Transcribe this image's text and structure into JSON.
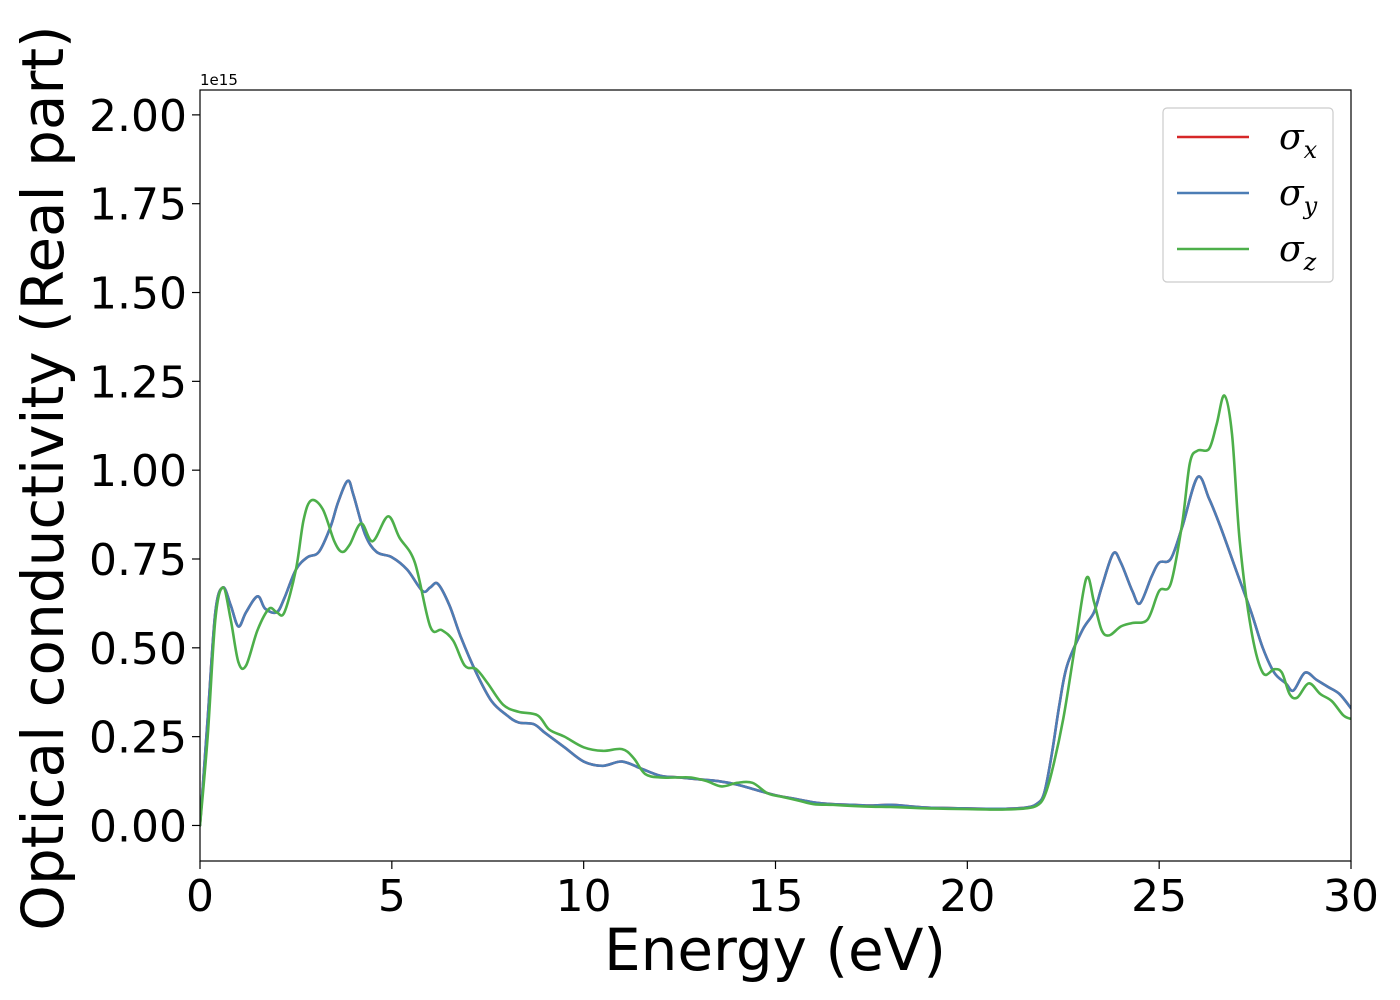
{
  "chart_data": {
    "type": "line",
    "xlabel": "Energy (eV)",
    "ylabel": "Optical conductivity (Real part)",
    "y_offset_text": "1e15",
    "xlim": [
      0,
      30
    ],
    "ylim": [
      -0.1,
      2.07
    ],
    "xticks": [
      0,
      5,
      10,
      15,
      20,
      25,
      30
    ],
    "xtick_labels": [
      "0",
      "5",
      "10",
      "15",
      "20",
      "25",
      "30"
    ],
    "yticks": [
      0.0,
      0.25,
      0.5,
      0.75,
      1.0,
      1.25,
      1.5,
      1.75,
      2.0
    ],
    "ytick_labels": [
      "0.00",
      "0.25",
      "0.50",
      "0.75",
      "1.00",
      "1.25",
      "1.50",
      "1.75",
      "2.00"
    ],
    "legend_position": "upper right",
    "grid": false,
    "series": [
      {
        "name": "σx",
        "name_base": "σ",
        "name_sub": "x",
        "color": "#d62728",
        "points": [
          [
            0,
            0.0
          ],
          [
            0.2,
            0.3
          ],
          [
            0.4,
            0.6
          ],
          [
            0.6,
            0.67
          ],
          [
            0.8,
            0.62
          ],
          [
            1.0,
            0.56
          ],
          [
            1.2,
            0.6
          ],
          [
            1.5,
            0.645
          ],
          [
            1.7,
            0.61
          ],
          [
            2.0,
            0.6
          ],
          [
            2.2,
            0.64
          ],
          [
            2.5,
            0.72
          ],
          [
            2.8,
            0.755
          ],
          [
            3.1,
            0.77
          ],
          [
            3.4,
            0.84
          ],
          [
            3.6,
            0.91
          ],
          [
            3.85,
            0.97
          ],
          [
            4.0,
            0.93
          ],
          [
            4.3,
            0.82
          ],
          [
            4.6,
            0.77
          ],
          [
            5.0,
            0.755
          ],
          [
            5.4,
            0.72
          ],
          [
            5.8,
            0.66
          ],
          [
            6.0,
            0.67
          ],
          [
            6.2,
            0.68
          ],
          [
            6.5,
            0.62
          ],
          [
            6.8,
            0.53
          ],
          [
            7.2,
            0.43
          ],
          [
            7.6,
            0.35
          ],
          [
            8.0,
            0.31
          ],
          [
            8.3,
            0.29
          ],
          [
            8.7,
            0.285
          ],
          [
            9.0,
            0.26
          ],
          [
            9.5,
            0.22
          ],
          [
            10.0,
            0.18
          ],
          [
            10.5,
            0.168
          ],
          [
            11.0,
            0.18
          ],
          [
            11.5,
            0.16
          ],
          [
            12.0,
            0.14
          ],
          [
            12.5,
            0.135
          ],
          [
            13.0,
            0.13
          ],
          [
            13.5,
            0.125
          ],
          [
            14.0,
            0.115
          ],
          [
            14.5,
            0.1
          ],
          [
            15.0,
            0.085
          ],
          [
            15.5,
            0.075
          ],
          [
            16.0,
            0.065
          ],
          [
            16.5,
            0.06
          ],
          [
            17.0,
            0.058
          ],
          [
            17.5,
            0.056
          ],
          [
            18.0,
            0.058
          ],
          [
            18.5,
            0.054
          ],
          [
            19.0,
            0.05
          ],
          [
            19.5,
            0.049
          ],
          [
            20.0,
            0.048
          ],
          [
            20.5,
            0.047
          ],
          [
            21.0,
            0.047
          ],
          [
            21.5,
            0.05
          ],
          [
            21.8,
            0.06
          ],
          [
            22.0,
            0.09
          ],
          [
            22.2,
            0.2
          ],
          [
            22.4,
            0.34
          ],
          [
            22.6,
            0.45
          ],
          [
            23.0,
            0.55
          ],
          [
            23.3,
            0.6
          ],
          [
            23.5,
            0.67
          ],
          [
            23.8,
            0.765
          ],
          [
            24.0,
            0.74
          ],
          [
            24.3,
            0.66
          ],
          [
            24.5,
            0.625
          ],
          [
            24.8,
            0.7
          ],
          [
            25.0,
            0.74
          ],
          [
            25.3,
            0.75
          ],
          [
            25.6,
            0.84
          ],
          [
            26.0,
            0.98
          ],
          [
            26.3,
            0.92
          ],
          [
            26.6,
            0.84
          ],
          [
            27.0,
            0.72
          ],
          [
            27.4,
            0.6
          ],
          [
            27.7,
            0.5
          ],
          [
            28.0,
            0.43
          ],
          [
            28.3,
            0.4
          ],
          [
            28.5,
            0.38
          ],
          [
            28.8,
            0.43
          ],
          [
            29.1,
            0.41
          ],
          [
            29.4,
            0.39
          ],
          [
            29.7,
            0.37
          ],
          [
            30.0,
            0.33
          ]
        ]
      },
      {
        "name": "σy",
        "name_base": "σ",
        "name_sub": "y",
        "color": "#4c7db5",
        "points": [
          [
            0,
            0.0
          ],
          [
            0.2,
            0.3
          ],
          [
            0.4,
            0.6
          ],
          [
            0.6,
            0.67
          ],
          [
            0.8,
            0.62
          ],
          [
            1.0,
            0.56
          ],
          [
            1.2,
            0.6
          ],
          [
            1.5,
            0.645
          ],
          [
            1.7,
            0.61
          ],
          [
            2.0,
            0.6
          ],
          [
            2.2,
            0.64
          ],
          [
            2.5,
            0.72
          ],
          [
            2.8,
            0.755
          ],
          [
            3.1,
            0.77
          ],
          [
            3.4,
            0.84
          ],
          [
            3.6,
            0.91
          ],
          [
            3.85,
            0.97
          ],
          [
            4.0,
            0.93
          ],
          [
            4.3,
            0.82
          ],
          [
            4.6,
            0.77
          ],
          [
            5.0,
            0.755
          ],
          [
            5.4,
            0.72
          ],
          [
            5.8,
            0.66
          ],
          [
            6.0,
            0.67
          ],
          [
            6.2,
            0.68
          ],
          [
            6.5,
            0.62
          ],
          [
            6.8,
            0.53
          ],
          [
            7.2,
            0.43
          ],
          [
            7.6,
            0.35
          ],
          [
            8.0,
            0.31
          ],
          [
            8.3,
            0.29
          ],
          [
            8.7,
            0.285
          ],
          [
            9.0,
            0.26
          ],
          [
            9.5,
            0.22
          ],
          [
            10.0,
            0.18
          ],
          [
            10.5,
            0.168
          ],
          [
            11.0,
            0.18
          ],
          [
            11.5,
            0.16
          ],
          [
            12.0,
            0.14
          ],
          [
            12.5,
            0.135
          ],
          [
            13.0,
            0.13
          ],
          [
            13.5,
            0.125
          ],
          [
            14.0,
            0.115
          ],
          [
            14.5,
            0.1
          ],
          [
            15.0,
            0.085
          ],
          [
            15.5,
            0.075
          ],
          [
            16.0,
            0.065
          ],
          [
            16.5,
            0.06
          ],
          [
            17.0,
            0.058
          ],
          [
            17.5,
            0.056
          ],
          [
            18.0,
            0.058
          ],
          [
            18.5,
            0.054
          ],
          [
            19.0,
            0.05
          ],
          [
            19.5,
            0.049
          ],
          [
            20.0,
            0.048
          ],
          [
            20.5,
            0.047
          ],
          [
            21.0,
            0.047
          ],
          [
            21.5,
            0.05
          ],
          [
            21.8,
            0.06
          ],
          [
            22.0,
            0.09
          ],
          [
            22.2,
            0.2
          ],
          [
            22.4,
            0.34
          ],
          [
            22.6,
            0.45
          ],
          [
            23.0,
            0.55
          ],
          [
            23.3,
            0.6
          ],
          [
            23.5,
            0.67
          ],
          [
            23.8,
            0.765
          ],
          [
            24.0,
            0.74
          ],
          [
            24.3,
            0.66
          ],
          [
            24.5,
            0.625
          ],
          [
            24.8,
            0.7
          ],
          [
            25.0,
            0.74
          ],
          [
            25.3,
            0.75
          ],
          [
            25.6,
            0.84
          ],
          [
            26.0,
            0.98
          ],
          [
            26.3,
            0.92
          ],
          [
            26.6,
            0.84
          ],
          [
            27.0,
            0.72
          ],
          [
            27.4,
            0.6
          ],
          [
            27.7,
            0.5
          ],
          [
            28.0,
            0.43
          ],
          [
            28.3,
            0.4
          ],
          [
            28.5,
            0.38
          ],
          [
            28.8,
            0.43
          ],
          [
            29.1,
            0.41
          ],
          [
            29.4,
            0.39
          ],
          [
            29.7,
            0.37
          ],
          [
            30.0,
            0.33
          ]
        ]
      },
      {
        "name": "σz",
        "name_base": "σ",
        "name_sub": "z",
        "color": "#4daf4a",
        "points": [
          [
            0,
            0.0
          ],
          [
            0.2,
            0.25
          ],
          [
            0.4,
            0.58
          ],
          [
            0.6,
            0.67
          ],
          [
            0.8,
            0.58
          ],
          [
            1.0,
            0.46
          ],
          [
            1.2,
            0.45
          ],
          [
            1.5,
            0.55
          ],
          [
            1.8,
            0.61
          ],
          [
            2.0,
            0.6
          ],
          [
            2.2,
            0.6
          ],
          [
            2.5,
            0.72
          ],
          [
            2.7,
            0.86
          ],
          [
            2.9,
            0.915
          ],
          [
            3.2,
            0.89
          ],
          [
            3.5,
            0.8
          ],
          [
            3.7,
            0.77
          ],
          [
            3.9,
            0.79
          ],
          [
            4.2,
            0.85
          ],
          [
            4.5,
            0.8
          ],
          [
            4.9,
            0.87
          ],
          [
            5.2,
            0.81
          ],
          [
            5.6,
            0.74
          ],
          [
            6.0,
            0.56
          ],
          [
            6.3,
            0.55
          ],
          [
            6.6,
            0.52
          ],
          [
            6.9,
            0.45
          ],
          [
            7.2,
            0.44
          ],
          [
            7.5,
            0.4
          ],
          [
            7.9,
            0.34
          ],
          [
            8.3,
            0.32
          ],
          [
            8.8,
            0.31
          ],
          [
            9.1,
            0.27
          ],
          [
            9.5,
            0.25
          ],
          [
            10.0,
            0.22
          ],
          [
            10.5,
            0.21
          ],
          [
            11.0,
            0.215
          ],
          [
            11.3,
            0.19
          ],
          [
            11.6,
            0.145
          ],
          [
            12.0,
            0.135
          ],
          [
            12.4,
            0.135
          ],
          [
            12.8,
            0.135
          ],
          [
            13.2,
            0.125
          ],
          [
            13.6,
            0.11
          ],
          [
            14.0,
            0.12
          ],
          [
            14.4,
            0.12
          ],
          [
            14.8,
            0.09
          ],
          [
            15.2,
            0.08
          ],
          [
            15.6,
            0.07
          ],
          [
            16.0,
            0.06
          ],
          [
            16.5,
            0.058
          ],
          [
            17.0,
            0.055
          ],
          [
            17.5,
            0.053
          ],
          [
            18.0,
            0.052
          ],
          [
            18.5,
            0.05
          ],
          [
            19.0,
            0.048
          ],
          [
            19.5,
            0.047
          ],
          [
            20.0,
            0.046
          ],
          [
            20.5,
            0.045
          ],
          [
            21.0,
            0.045
          ],
          [
            21.5,
            0.048
          ],
          [
            21.8,
            0.055
          ],
          [
            22.0,
            0.08
          ],
          [
            22.2,
            0.15
          ],
          [
            22.5,
            0.3
          ],
          [
            22.8,
            0.5
          ],
          [
            23.1,
            0.695
          ],
          [
            23.3,
            0.63
          ],
          [
            23.5,
            0.55
          ],
          [
            23.7,
            0.535
          ],
          [
            24.0,
            0.56
          ],
          [
            24.3,
            0.57
          ],
          [
            24.7,
            0.58
          ],
          [
            25.0,
            0.66
          ],
          [
            25.3,
            0.68
          ],
          [
            25.6,
            0.85
          ],
          [
            25.8,
            1.02
          ],
          [
            26.0,
            1.055
          ],
          [
            26.3,
            1.06
          ],
          [
            26.5,
            1.13
          ],
          [
            26.7,
            1.21
          ],
          [
            26.9,
            1.1
          ],
          [
            27.1,
            0.8
          ],
          [
            27.4,
            0.55
          ],
          [
            27.7,
            0.43
          ],
          [
            28.0,
            0.44
          ],
          [
            28.2,
            0.43
          ],
          [
            28.4,
            0.37
          ],
          [
            28.6,
            0.36
          ],
          [
            28.9,
            0.4
          ],
          [
            29.2,
            0.37
          ],
          [
            29.5,
            0.35
          ],
          [
            29.8,
            0.31
          ],
          [
            30.0,
            0.3
          ]
        ]
      }
    ]
  }
}
